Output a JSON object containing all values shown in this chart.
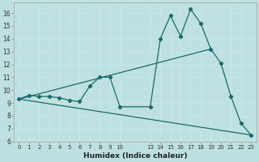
{
  "xlabel": "Humidex (Indice chaleur)",
  "bg_color": "#bfe0e0",
  "grid_color": "#d8f0f0",
  "line_color": "#1a6b6b",
  "line1_x": [
    0,
    1,
    2,
    3,
    4,
    5,
    6,
    7,
    8,
    9,
    10,
    13,
    14,
    15,
    16,
    17,
    18,
    19,
    20,
    21,
    22,
    23
  ],
  "line1_y": [
    9.3,
    9.6,
    9.5,
    9.5,
    9.4,
    9.2,
    9.1,
    10.3,
    11.0,
    11.0,
    8.7,
    8.7,
    14.0,
    15.8,
    14.2,
    16.3,
    15.2,
    13.2,
    12.1,
    9.5,
    7.4,
    6.5
  ],
  "line2_x": [
    0,
    19
  ],
  "line2_y": [
    9.3,
    13.2
  ],
  "line3_x": [
    0,
    23
  ],
  "line3_y": [
    9.3,
    6.5
  ],
  "xlim": [
    -0.5,
    23.5
  ],
  "ylim": [
    6,
    16.8
  ],
  "xticks": [
    0,
    1,
    2,
    3,
    4,
    5,
    6,
    7,
    8,
    9,
    10,
    13,
    14,
    15,
    16,
    17,
    18,
    19,
    20,
    21,
    22,
    23
  ],
  "yticks": [
    6,
    7,
    8,
    9,
    10,
    11,
    12,
    13,
    14,
    15,
    16
  ]
}
